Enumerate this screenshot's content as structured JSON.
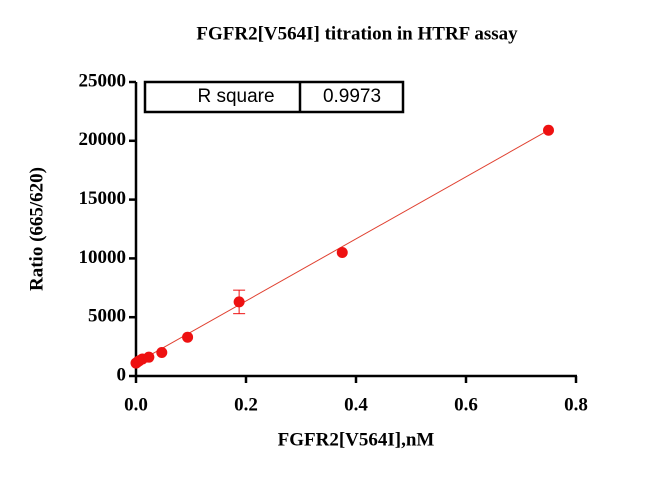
{
  "chart_data": {
    "type": "scatter",
    "title": "FGFR2[V564I] titration in HTRF assay",
    "x_label": "FGFR2[V564I],nM",
    "y_label": "Ratio (665/620)",
    "xlim": [
      0,
      0.8
    ],
    "ylim": [
      0,
      25000
    ],
    "xticks": [
      {
        "value": 0,
        "label": "0.0"
      },
      0.2,
      0.4,
      0.6,
      0.8
    ],
    "yticks": [
      0,
      5000,
      10000,
      15000,
      20000,
      25000
    ],
    "color": "#ee1111",
    "x": [
      0,
      0.0029,
      0.0059,
      0.0117,
      0.0234,
      0.0469,
      0.0938,
      0.1875,
      0.375,
      0.75
    ],
    "values": [
      1100,
      1200,
      1300,
      1450,
      1600,
      2000,
      3300,
      6300,
      10500,
      20900
    ],
    "errors": [
      null,
      null,
      null,
      null,
      null,
      null,
      null,
      1000,
      null,
      null
    ],
    "fit_line": {
      "color": "#e04030",
      "x": [
        0,
        0.75
      ],
      "y": [
        1100,
        20900
      ]
    },
    "r_square_label": "R square",
    "r_square": 0.9973
  }
}
